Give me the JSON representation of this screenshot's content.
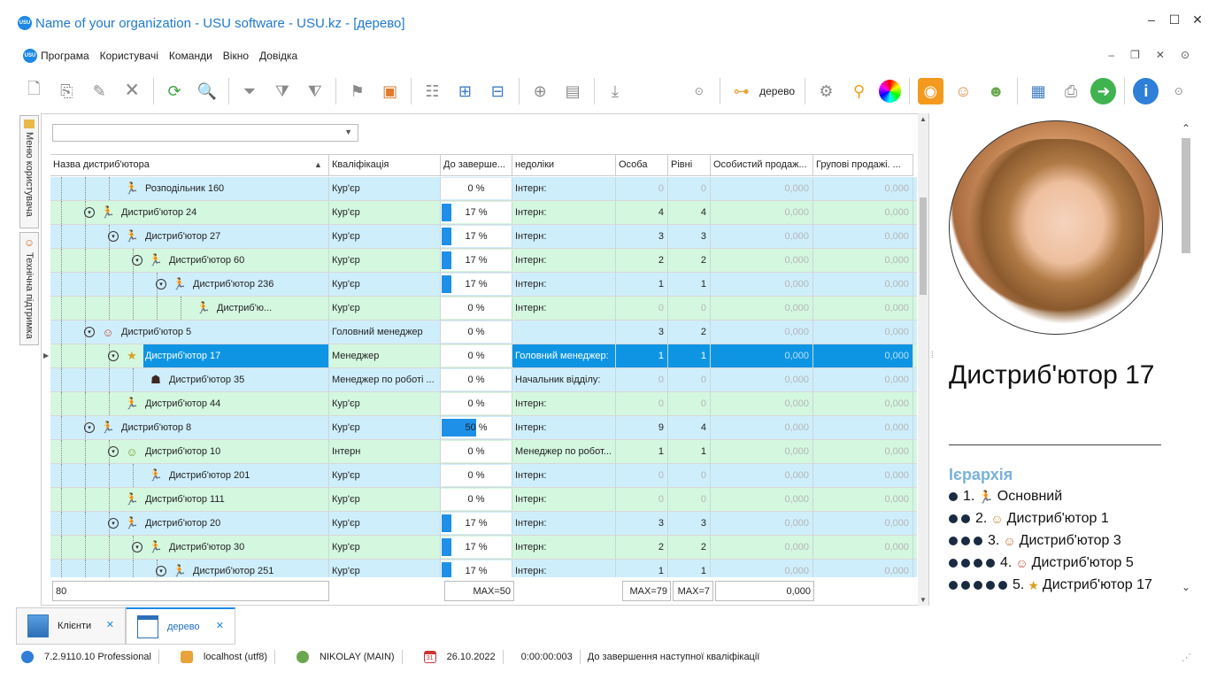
{
  "window": {
    "title": "Name of your organization - USU software - USU.kz - [дерево]",
    "logo_text": "USU"
  },
  "menu": [
    "Програма",
    "Користувачі",
    "Команди",
    "Вікно",
    "Довідка"
  ],
  "toolbar": {
    "view_label": "дерево"
  },
  "side_tabs": [
    "Меню користувача",
    "Технічна підтримка"
  ],
  "grid": {
    "columns": [
      "Назва дистриб'ютора",
      "Кваліфікація",
      "До заверше...",
      "недоліки",
      "Особа",
      "Рівні",
      "Особистий продаж...",
      "Групові продажі. ..."
    ],
    "rows": [
      {
        "name": "Розподільник 160",
        "level": 4,
        "exp": false,
        "icon": "courier",
        "qual": "Кур'єр",
        "pct": "0 %",
        "fill": 0,
        "nedoliky": "Інтерн:",
        "osoba": "0",
        "rivni": "0",
        "os_prod": "0,000",
        "gr_prod": "0,000",
        "color": "blue"
      },
      {
        "name": "Дистриб'ютор 24",
        "level": 3,
        "exp": true,
        "icon": "courier",
        "qual": "Кур'єр",
        "pct": "17 %",
        "fill": 17,
        "nedoliky": "Інтерн:",
        "osoba": "4",
        "rivni": "4",
        "os_prod": "0,000",
        "gr_prod": "0,000",
        "color": "green"
      },
      {
        "name": "Дистриб'ютор 27",
        "level": 4,
        "exp": true,
        "icon": "courier",
        "qual": "Кур'єр",
        "pct": "17 %",
        "fill": 17,
        "nedoliky": "Інтерн:",
        "osoba": "3",
        "rivni": "3",
        "os_prod": "0,000",
        "gr_prod": "0,000",
        "color": "blue"
      },
      {
        "name": "Дистриб'ютор 60",
        "level": 5,
        "exp": true,
        "icon": "courier",
        "qual": "Кур'єр",
        "pct": "17 %",
        "fill": 17,
        "nedoliky": "Інтерн:",
        "osoba": "2",
        "rivni": "2",
        "os_prod": "0,000",
        "gr_prod": "0,000",
        "color": "green"
      },
      {
        "name": "Дистриб'ютор 236",
        "level": 6,
        "exp": true,
        "icon": "courier",
        "qual": "Кур'єр",
        "pct": "17 %",
        "fill": 17,
        "nedoliky": "Інтерн:",
        "osoba": "1",
        "rivni": "1",
        "os_prod": "0,000",
        "gr_prod": "0,000",
        "color": "blue"
      },
      {
        "name": "Дистриб'ю...",
        "level": 7,
        "exp": false,
        "icon": "courier",
        "qual": "Кур'єр",
        "pct": "0 %",
        "fill": 0,
        "nedoliky": "Інтерн:",
        "osoba": "0",
        "rivni": "0",
        "os_prod": "0,000",
        "gr_prod": "0,000",
        "color": "green"
      },
      {
        "name": "Дистриб'ютор 5",
        "level": 3,
        "exp": true,
        "icon": "manager",
        "qual": "Головний менеджер",
        "pct": "0 %",
        "fill": 0,
        "nedoliky": "",
        "osoba": "3",
        "rivni": "2",
        "os_prod": "0,000",
        "gr_prod": "0,000",
        "color": "blue"
      },
      {
        "name": "Дистриб'ютор 17",
        "level": 4,
        "exp": true,
        "icon": "star",
        "qual": "Менеджер",
        "pct": "0 %",
        "fill": 0,
        "nedoliky": "Головний менеджер:",
        "osoba": "1",
        "rivni": "1",
        "os_prod": "0,000",
        "gr_prod": "0,000",
        "color": "green",
        "selected": true
      },
      {
        "name": "Дистриб'ютор 35",
        "level": 5,
        "exp": false,
        "icon": "boss",
        "qual": "Менеджер по роботі ...",
        "pct": "0 %",
        "fill": 0,
        "nedoliky": "Начальник відділу:",
        "osoba": "0",
        "rivni": "0",
        "os_prod": "0,000",
        "gr_prod": "0,000",
        "color": "blue"
      },
      {
        "name": "Дистриб'ютор 44",
        "level": 4,
        "exp": false,
        "icon": "courier",
        "qual": "Кур'єр",
        "pct": "0 %",
        "fill": 0,
        "nedoliky": "Інтерн:",
        "osoba": "0",
        "rivni": "0",
        "os_prod": "0,000",
        "gr_prod": "0,000",
        "color": "green"
      },
      {
        "name": "Дистриб'ютор 8",
        "level": 3,
        "exp": true,
        "icon": "courier",
        "qual": "Кур'єр",
        "pct": "50 %",
        "fill": 50,
        "nedoliky": "Інтерн:",
        "osoba": "9",
        "rivni": "4",
        "os_prod": "0,000",
        "gr_prod": "0,000",
        "color": "blue"
      },
      {
        "name": "Дистриб'ютор 10",
        "level": 4,
        "exp": true,
        "icon": "intern",
        "qual": "Інтерн",
        "pct": "0 %",
        "fill": 0,
        "nedoliky": "Менеджер по робот...",
        "osoba": "1",
        "rivni": "1",
        "os_prod": "0,000",
        "gr_prod": "0,000",
        "color": "green"
      },
      {
        "name": "Дистриб'ютор 201",
        "level": 5,
        "exp": false,
        "icon": "courier",
        "qual": "Кур'єр",
        "pct": "0 %",
        "fill": 0,
        "nedoliky": "Інтерн:",
        "osoba": "0",
        "rivni": "0",
        "os_prod": "0,000",
        "gr_prod": "0,000",
        "color": "blue"
      },
      {
        "name": "Дистриб'ютор 111",
        "level": 4,
        "exp": false,
        "icon": "courier",
        "qual": "Кур'єр",
        "pct": "0 %",
        "fill": 0,
        "nedoliky": "Інтерн:",
        "osoba": "0",
        "rivni": "0",
        "os_prod": "0,000",
        "gr_prod": "0,000",
        "color": "green"
      },
      {
        "name": "Дистриб'ютор 20",
        "level": 4,
        "exp": true,
        "icon": "courier",
        "qual": "Кур'єр",
        "pct": "17 %",
        "fill": 17,
        "nedoliky": "Інтерн:",
        "osoba": "3",
        "rivni": "3",
        "os_prod": "0,000",
        "gr_prod": "0,000",
        "color": "blue"
      },
      {
        "name": "Дистриб'ютор 30",
        "level": 5,
        "exp": true,
        "icon": "courier",
        "qual": "Кур'єр",
        "pct": "17 %",
        "fill": 17,
        "nedoliky": "Інтерн:",
        "osoba": "2",
        "rivni": "2",
        "os_prod": "0,000",
        "gr_prod": "0,000",
        "color": "green"
      },
      {
        "name": "Дистриб'ютор 251",
        "level": 6,
        "exp": true,
        "icon": "courier",
        "qual": "Кур'єр",
        "pct": "17 %",
        "fill": 17,
        "nedoliky": "Інтерн:",
        "osoba": "1",
        "rivni": "1",
        "os_prod": "0,000",
        "gr_prod": "0,000",
        "color": "blue"
      }
    ],
    "footer": {
      "count": "80",
      "max_pct": "MAX=50",
      "max_osoba": "MAX=79",
      "max_rivni": "MAX=7",
      "sum": "0,000"
    }
  },
  "details": {
    "name": "Дистриб'ютор 17",
    "hierarchy_title": "Ієрархія",
    "hierarchy": [
      {
        "num": "1.",
        "label": "Основний",
        "dots": 1
      },
      {
        "num": "2.",
        "label": "Дистриб'ютор 1",
        "dots": 2
      },
      {
        "num": "3.",
        "label": "Дистриб'ютор 3",
        "dots": 3
      },
      {
        "num": "4.",
        "label": "Дистриб'ютор 5",
        "dots": 4
      },
      {
        "num": "5.",
        "label": "Дистриб'ютор 17",
        "dots": 5
      }
    ]
  },
  "doc_tabs": [
    {
      "label": "Клієнти",
      "active": false
    },
    {
      "label": "дерево",
      "active": true
    }
  ],
  "status": {
    "version": "7.2.9110.10 Professional",
    "db": "localhost (utf8)",
    "user": "NIKOLAY (MAIN)",
    "calendar_day": "31",
    "date": "26.10.2022",
    "timer": "0:00:00:003",
    "message": "До завершення наступної кваліфікації"
  },
  "colors": {
    "accent": "#1e88e5",
    "row_blue": "#cfeefc",
    "row_green": "#d4f7df",
    "selection": "#0d95e3"
  }
}
